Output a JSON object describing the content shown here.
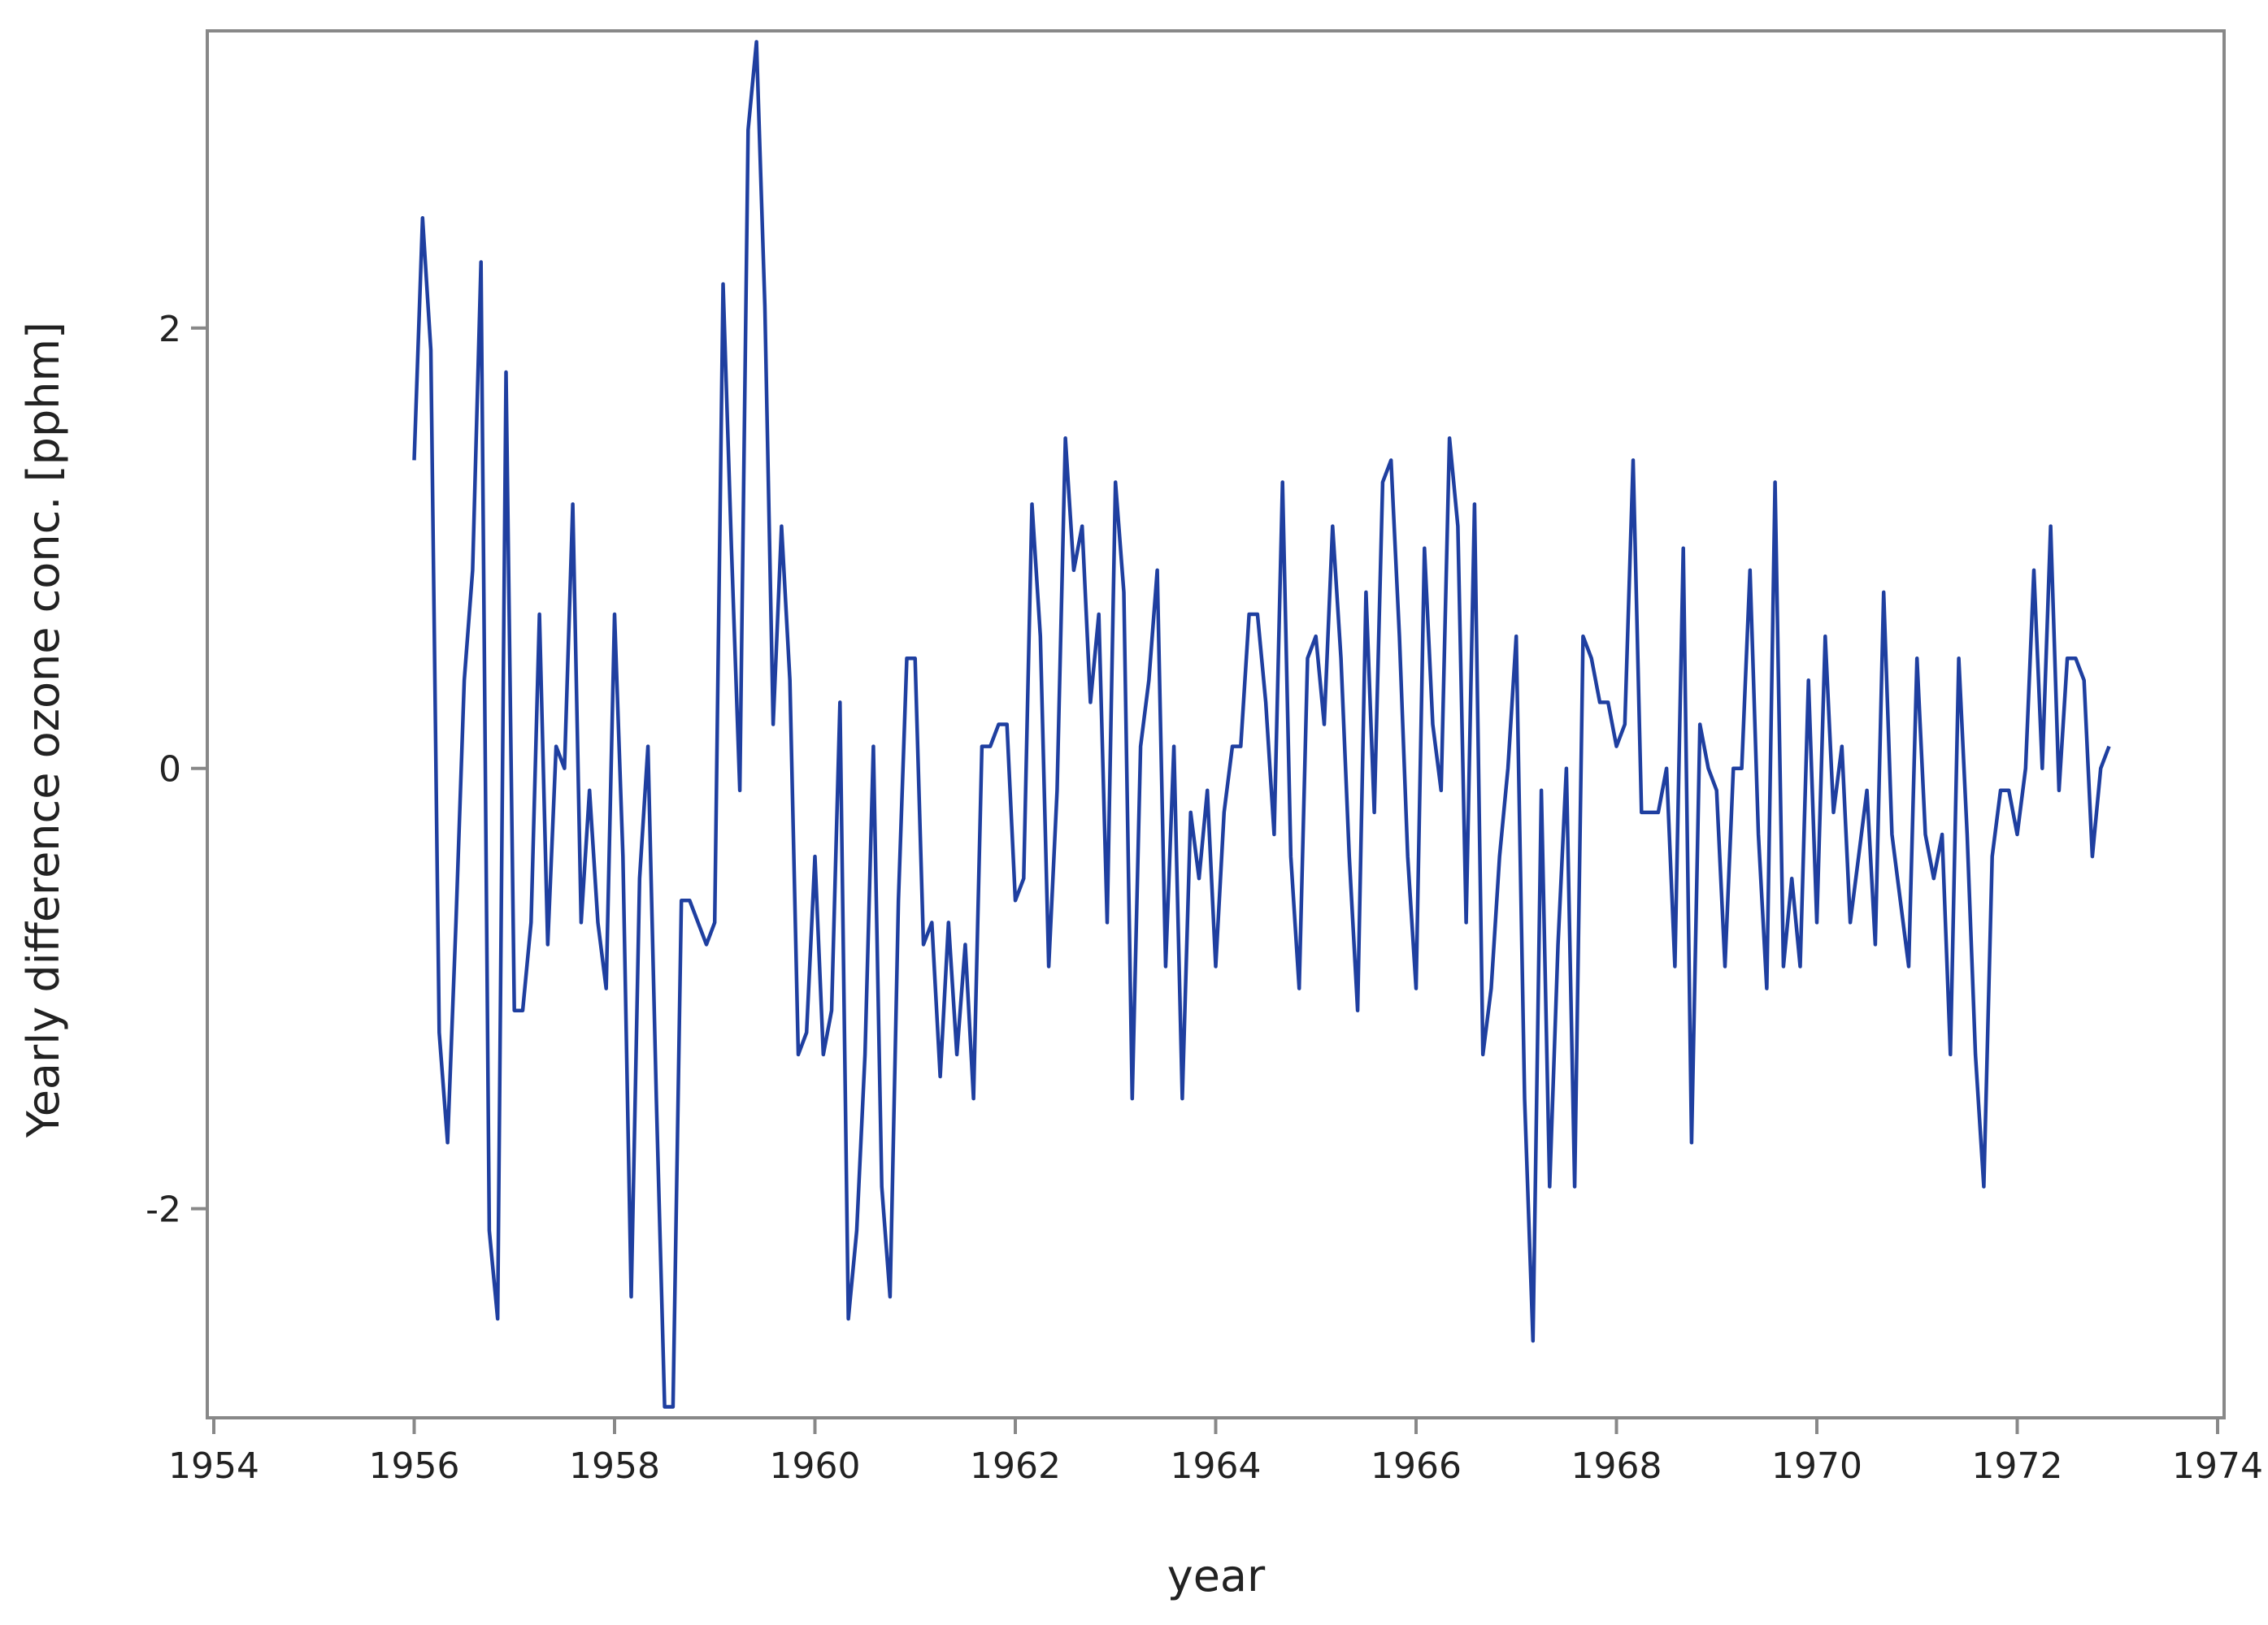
{
  "chart_data": {
    "type": "line",
    "title": "",
    "xlabel": "year",
    "ylabel": "Yearly difference ozone conc. [pphm]",
    "xlim": [
      1954,
      1974
    ],
    "ylim": [
      -2.95,
      3.35
    ],
    "xticks": [
      "1954",
      "1956",
      "1958",
      "1960",
      "1962",
      "1964",
      "1966",
      "1968",
      "1970",
      "1972",
      "1974"
    ],
    "yticks": [
      "-2",
      "0",
      "2"
    ],
    "grid": false,
    "legend": "none",
    "colors": {
      "line": "#1f3fa0",
      "frame": "#888888",
      "text": "#222222"
    },
    "series": [
      {
        "x_start": 1956,
        "step": 0.0833333,
        "values": [
          1.4,
          2.5,
          1.9,
          -1.2,
          -1.7,
          -0.7,
          0.4,
          0.9,
          2.3,
          -2.1,
          -2.5,
          1.8,
          -1.1,
          -1.1,
          -0.7,
          0.7,
          -0.8,
          0.1,
          0.0,
          1.2,
          -0.7,
          -0.1,
          -0.7,
          -1.0,
          0.7,
          -0.4,
          -2.4,
          -0.5,
          0.1,
          -1.5,
          -2.9,
          -2.9,
          -0.6,
          -0.6,
          -0.7,
          -0.8,
          -0.7,
          2.2,
          1.0,
          -0.1,
          2.9,
          3.3,
          2.1,
          0.2,
          1.1,
          0.4,
          -1.3,
          -1.2,
          -0.4,
          -1.3,
          -1.1,
          0.3,
          -2.5,
          -2.1,
          -1.3,
          0.1,
          -1.9,
          -2.4,
          -0.6,
          0.5,
          0.5,
          -0.8,
          -0.7,
          -1.4,
          -0.7,
          -1.3,
          -0.8,
          -1.5,
          0.1,
          0.1,
          0.2,
          0.2,
          -0.6,
          -0.5,
          1.2,
          0.6,
          -0.9,
          -0.1,
          1.5,
          0.9,
          1.1,
          0.3,
          0.7,
          -0.7,
          1.3,
          0.8,
          -1.5,
          0.1,
          0.4,
          0.9,
          -0.9,
          0.1,
          -1.5,
          -0.2,
          -0.5,
          -0.1,
          -0.9,
          -0.2,
          0.1,
          0.1,
          0.7,
          0.7,
          0.3,
          -0.3,
          1.3,
          -0.4,
          -1.0,
          0.5,
          0.6,
          0.2,
          1.1,
          0.5,
          -0.4,
          -1.1,
          0.8,
          -0.2,
          1.3,
          1.4,
          0.6,
          -0.4,
          -1.0,
          1.0,
          0.2,
          -0.1,
          1.5,
          1.1,
          -0.7,
          1.2,
          -1.3,
          -1.0,
          -0.4,
          0.0,
          0.6,
          -1.5,
          -2.6,
          -0.1,
          -1.9,
          -0.8,
          0.0,
          -1.9,
          0.6,
          0.5,
          0.3,
          0.3,
          0.1,
          0.2,
          1.4,
          -0.2,
          -0.2,
          -0.2,
          0.0,
          -0.9,
          1.0,
          -1.7,
          0.2,
          0.0,
          -0.1,
          -0.9,
          0.0,
          0.0,
          0.9,
          -0.3,
          -1.0,
          1.3,
          -0.9,
          -0.5,
          -0.9,
          0.4,
          -0.7,
          0.6,
          -0.2,
          0.1,
          -0.7,
          -0.4,
          -0.1,
          -0.8,
          0.8,
          -0.3,
          -0.6,
          -0.9,
          0.5,
          -0.3,
          -0.5,
          -0.3,
          -1.3,
          0.5,
          -0.3,
          -1.3,
          -1.9,
          -0.4,
          -0.1,
          -0.1,
          -0.3,
          0.0,
          0.9,
          0.0,
          1.1,
          -0.1,
          0.5,
          0.5,
          0.4,
          -0.4,
          0.0,
          0.1
        ]
      }
    ]
  }
}
